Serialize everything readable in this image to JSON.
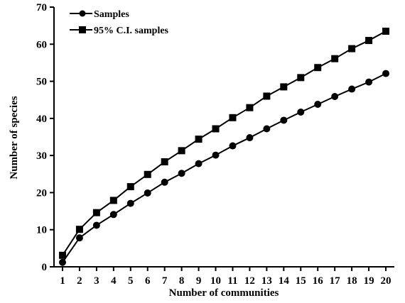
{
  "chart_data": {
    "type": "line",
    "title": "",
    "xlabel": "Number of communities",
    "ylabel": "Number of species",
    "x": [
      1,
      2,
      3,
      4,
      5,
      6,
      7,
      8,
      9,
      10,
      11,
      12,
      13,
      14,
      15,
      16,
      17,
      18,
      19,
      20
    ],
    "xlim": [
      0.5,
      20.5
    ],
    "ylim": [
      0,
      70
    ],
    "xticks": [
      1,
      2,
      3,
      4,
      5,
      6,
      7,
      8,
      9,
      10,
      11,
      12,
      13,
      14,
      15,
      16,
      17,
      18,
      19,
      20
    ],
    "yticks": [
      0,
      10,
      20,
      30,
      40,
      50,
      60,
      70
    ],
    "grid": false,
    "legend_position": "top-left",
    "series": [
      {
        "name": "Samples",
        "marker": "circle",
        "color": "#000000",
        "values": [
          1.2,
          7.8,
          11.2,
          14.1,
          17.1,
          19.9,
          22.8,
          25.2,
          27.8,
          30.1,
          32.6,
          34.8,
          37.2,
          39.5,
          41.7,
          43.8,
          45.9,
          47.9,
          49.8,
          52.1
        ]
      },
      {
        "name": "95% C.I. samples",
        "marker": "square",
        "color": "#000000",
        "values": [
          3.1,
          10.1,
          14.6,
          17.9,
          21.6,
          24.9,
          28.3,
          31.3,
          34.4,
          37.2,
          40.2,
          42.9,
          46.0,
          48.5,
          51.0,
          53.7,
          56.1,
          58.8,
          61.0,
          63.5
        ]
      }
    ]
  }
}
